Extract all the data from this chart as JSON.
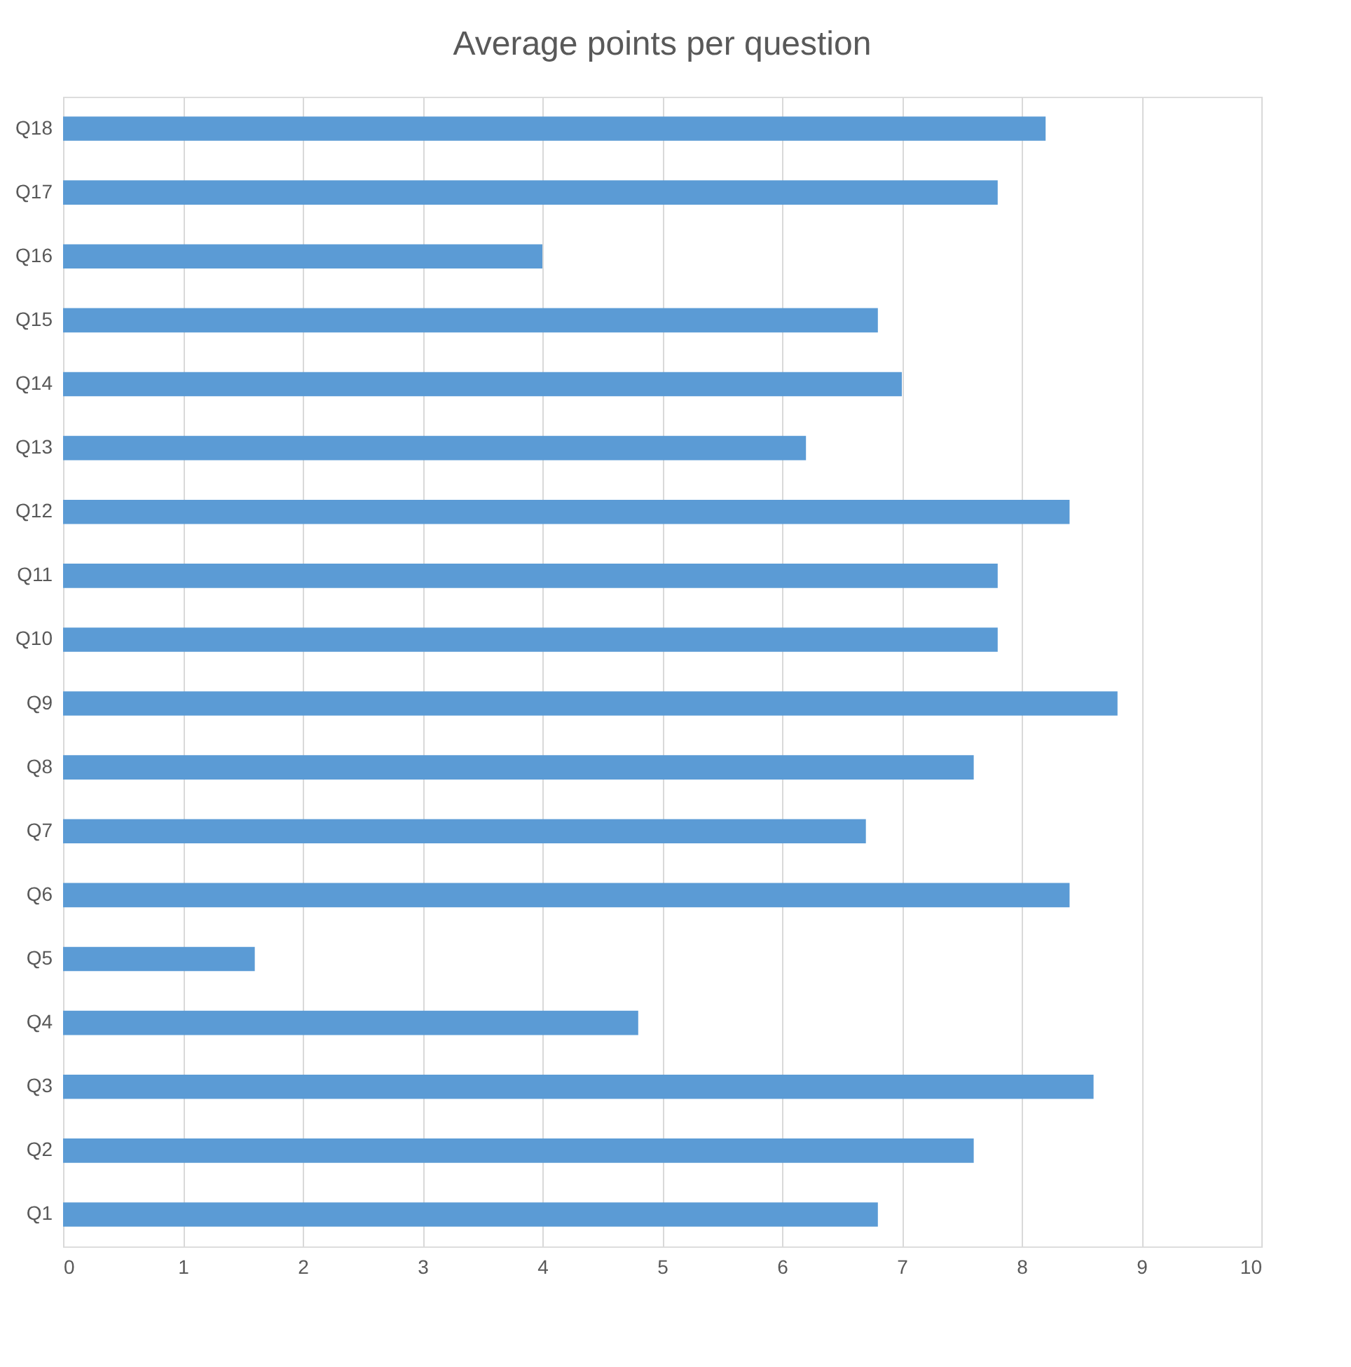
{
  "chart_data": {
    "type": "bar",
    "orientation": "horizontal",
    "title": "Average points per question",
    "categories": [
      "Q18",
      "Q17",
      "Q16",
      "Q15",
      "Q14",
      "Q13",
      "Q12",
      "Q11",
      "Q10",
      "Q9",
      "Q8",
      "Q7",
      "Q6",
      "Q5",
      "Q4",
      "Q3",
      "Q2",
      "Q1"
    ],
    "values": [
      8.2,
      7.8,
      4.0,
      6.8,
      7.0,
      6.2,
      8.4,
      7.8,
      7.8,
      8.8,
      7.6,
      6.7,
      8.4,
      1.6,
      4.8,
      8.6,
      7.6,
      6.8
    ],
    "color": "#5b9bd5",
    "xlim": [
      0,
      10
    ],
    "xticks": [
      0,
      1,
      2,
      3,
      4,
      5,
      6,
      7,
      8,
      9,
      10
    ],
    "grid": "x"
  }
}
